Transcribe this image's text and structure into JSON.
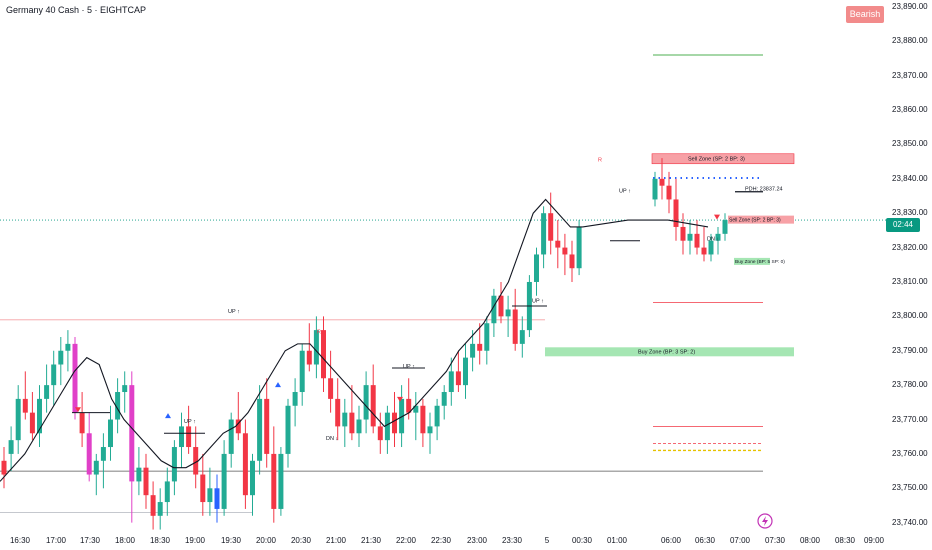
{
  "header": {
    "symbol_title": "Germany 40 Cash · 5 · EIGHTCAP",
    "trend_badge": "Bearish"
  },
  "colors": {
    "up": "#22ab94",
    "down": "#f23645",
    "pink_candle": "#e040c8",
    "blue_candle": "#2962ff",
    "trend_line": "#131722",
    "sell_zone": "#f7a1a6",
    "buy_zone": "#a5e6b3",
    "price_flag": "#089981",
    "bearish_badge": "#f28b8b"
  },
  "price_flag": {
    "value": "02:44"
  },
  "price_scale": {
    "ticks": [
      "23,890.00",
      "23,880.00",
      "23,870.00",
      "23,860.00",
      "23,850.00",
      "23,840.00",
      "23,830.00",
      "23,820.00",
      "23,810.00",
      "23,800.00",
      "23,790.00",
      "23,780.00",
      "23,770.00",
      "23,760.00",
      "23,750.00",
      "23,740.00"
    ]
  },
  "time_scale": {
    "ticks": [
      "16:30",
      "17:00",
      "17:30",
      "18:00",
      "18:30",
      "19:00",
      "19:30",
      "20:00",
      "20:30",
      "21:00",
      "21:30",
      "22:00",
      "22:30",
      "23:00",
      "23:30",
      "5",
      "00:30",
      "01:00",
      "06:00",
      "06:30",
      "07:00",
      "07:30",
      "08:00",
      "08:30",
      "09:00"
    ]
  },
  "annotations": {
    "sell_zone_top": "Sell Zone (SP: 2  BP: 3)",
    "sell_zone_mid": "Sell Zone (SP: 2  BP: 3)",
    "buy_zone_main": "Buy Zone (BP: 3  SP: 2)",
    "buy_zone_small": "Buy Zone (BP: 5  SP: 0)",
    "pdh": "PDH: 23837.24",
    "up1": "UP ↑",
    "up2": "UP ↑",
    "up3": "UP ↑",
    "up4": "UP ↑",
    "up5": "UP ↑",
    "dn1": "DN ↓",
    "dn2": "DN ↓",
    "marker_r1": "R",
    "marker_r2": "R"
  },
  "chart_data": {
    "type": "candlestick",
    "title": "Germany 40 Cash · 5 · EIGHTCAP",
    "ylim": [
      23737,
      23892
    ],
    "last_price": 23828,
    "levels": {
      "pdh": 23837.24,
      "upper_green": 23876,
      "upper_red": 23804,
      "lower_red": 23768,
      "lower_red_dashed": 23763,
      "lower_yellow_dashed": 23761,
      "lower_black": 23755,
      "left_red": 23799,
      "left_gray": 23743
    },
    "zones": [
      {
        "name": "Sell Zone (SP: 2  BP: 3)",
        "low": 23845,
        "high": 23847,
        "side": "sell"
      },
      {
        "name": "Sell Zone (SP: 2  BP: 3)",
        "low": 23827,
        "high": 23829,
        "side": "sell"
      },
      {
        "name": "Buy Zone (BP: 3  SP: 2)",
        "low": 23789,
        "high": 23791,
        "side": "buy"
      },
      {
        "name": "Buy Zone (BP: 5  SP: 0)",
        "low": 23815,
        "high": 23817,
        "side": "buy"
      }
    ],
    "candles": [
      [
        23758,
        23762,
        23750,
        23754,
        "n"
      ],
      [
        23760,
        23768,
        23755,
        23764,
        "n"
      ],
      [
        23764,
        23780,
        23760,
        23776,
        "n"
      ],
      [
        23776,
        23784,
        23770,
        23772,
        "n"
      ],
      [
        23772,
        23778,
        23764,
        23766,
        "n"
      ],
      [
        23766,
        23780,
        23762,
        23776,
        "n"
      ],
      [
        23776,
        23786,
        23772,
        23780,
        "n"
      ],
      [
        23780,
        23790,
        23774,
        23786,
        "n"
      ],
      [
        23786,
        23794,
        23780,
        23790,
        "n"
      ],
      [
        23790,
        23796,
        23784,
        23792,
        "n"
      ],
      [
        23792,
        23794,
        23770,
        23772,
        "p"
      ],
      [
        23772,
        23778,
        23762,
        23766,
        "n"
      ],
      [
        23766,
        23772,
        23752,
        23754,
        "p"
      ],
      [
        23754,
        23760,
        23748,
        23758,
        "n"
      ],
      [
        23758,
        23766,
        23750,
        23762,
        "n"
      ],
      [
        23762,
        23774,
        23758,
        23770,
        "n"
      ],
      [
        23770,
        23782,
        23766,
        23778,
        "n"
      ],
      [
        23778,
        23784,
        23772,
        23780,
        "n"
      ],
      [
        23780,
        23784,
        23740,
        23752,
        "p"
      ],
      [
        23752,
        23762,
        23748,
        23756,
        "n"
      ],
      [
        23756,
        23760,
        23744,
        23748,
        "n"
      ],
      [
        23748,
        23752,
        23738,
        23742,
        "n"
      ],
      [
        23742,
        23750,
        23738,
        23746,
        "n"
      ],
      [
        23746,
        23756,
        23742,
        23752,
        "n"
      ],
      [
        23752,
        23764,
        23748,
        23762,
        "n"
      ],
      [
        23762,
        23772,
        23756,
        23768,
        "n"
      ],
      [
        23768,
        23774,
        23760,
        23762,
        "n"
      ],
      [
        23762,
        23768,
        23750,
        23754,
        "n"
      ],
      [
        23754,
        23760,
        23742,
        23746,
        "n"
      ],
      [
        23746,
        23756,
        23742,
        23750,
        "n"
      ],
      [
        23750,
        23754,
        23740,
        23744,
        "b"
      ],
      [
        23744,
        23764,
        23742,
        23760,
        "n"
      ],
      [
        23760,
        23772,
        23756,
        23770,
        "n"
      ],
      [
        23770,
        23778,
        23764,
        23766,
        "n"
      ],
      [
        23766,
        23770,
        23744,
        23748,
        "n"
      ],
      [
        23748,
        23760,
        23742,
        23758,
        "n"
      ],
      [
        23758,
        23780,
        23754,
        23776,
        "n"
      ],
      [
        23776,
        23782,
        23756,
        23760,
        "n"
      ],
      [
        23760,
        23768,
        23740,
        23744,
        "n"
      ],
      [
        23744,
        23762,
        23742,
        23760,
        "n"
      ],
      [
        23760,
        23776,
        23756,
        23774,
        "n"
      ],
      [
        23774,
        23782,
        23768,
        23778,
        "n"
      ],
      [
        23778,
        23792,
        23774,
        23790,
        "n"
      ],
      [
        23790,
        23798,
        23784,
        23786,
        "n"
      ],
      [
        23786,
        23800,
        23782,
        23796,
        "n"
      ],
      [
        23796,
        23800,
        23778,
        23782,
        "n"
      ],
      [
        23782,
        23790,
        23772,
        23776,
        "n"
      ],
      [
        23776,
        23782,
        23764,
        23768,
        "n"
      ],
      [
        23768,
        23776,
        23762,
        23772,
        "n"
      ],
      [
        23772,
        23780,
        23764,
        23766,
        "n"
      ],
      [
        23766,
        23774,
        23762,
        23770,
        "n"
      ],
      [
        23770,
        23784,
        23766,
        23780,
        "n"
      ],
      [
        23780,
        23786,
        23766,
        23768,
        "n"
      ],
      [
        23768,
        23772,
        23760,
        23764,
        "n"
      ],
      [
        23764,
        23774,
        23760,
        23772,
        "n"
      ],
      [
        23772,
        23778,
        23762,
        23766,
        "n"
      ],
      [
        23766,
        23780,
        23762,
        23776,
        "n"
      ],
      [
        23776,
        23782,
        23770,
        23772,
        "n"
      ],
      [
        23772,
        23778,
        23764,
        23774,
        "n"
      ],
      [
        23774,
        23776,
        23762,
        23766,
        "n"
      ],
      [
        23766,
        23772,
        23760,
        23768,
        "n"
      ],
      [
        23768,
        23776,
        23764,
        23774,
        "n"
      ],
      [
        23774,
        23780,
        23770,
        23778,
        "n"
      ],
      [
        23778,
        23788,
        23774,
        23784,
        "n"
      ],
      [
        23784,
        23790,
        23778,
        23780,
        "n"
      ],
      [
        23780,
        23792,
        23776,
        23788,
        "n"
      ],
      [
        23788,
        23796,
        23784,
        23792,
        "n"
      ],
      [
        23792,
        23798,
        23786,
        23790,
        "n"
      ],
      [
        23790,
        23800,
        23786,
        23798,
        "n"
      ],
      [
        23798,
        23808,
        23794,
        23806,
        "n"
      ],
      [
        23806,
        23810,
        23798,
        23800,
        "n"
      ],
      [
        23800,
        23806,
        23794,
        23802,
        "n"
      ],
      [
        23802,
        23808,
        23790,
        23792,
        "n"
      ],
      [
        23792,
        23800,
        23788,
        23796,
        "n"
      ],
      [
        23796,
        23812,
        23794,
        23810,
        "n"
      ],
      [
        23810,
        23820,
        23806,
        23818,
        "n"
      ],
      [
        23818,
        23832,
        23814,
        23830,
        "n"
      ],
      [
        23830,
        23836,
        23818,
        23822,
        "n"
      ],
      [
        23822,
        23828,
        23814,
        23820,
        "n"
      ],
      [
        23820,
        23824,
        23812,
        23818,
        "n"
      ],
      [
        23818,
        23822,
        23810,
        23814,
        "n"
      ],
      [
        23814,
        23828,
        23812,
        23826,
        "n"
      ],
      [
        23834,
        23842,
        23832,
        23840,
        "n"
      ],
      [
        23840,
        23846,
        23834,
        23838,
        "n"
      ],
      [
        23838,
        23842,
        23830,
        23834,
        "n"
      ],
      [
        23834,
        23840,
        23822,
        23826,
        "n"
      ],
      [
        23826,
        23830,
        23818,
        23822,
        "n"
      ],
      [
        23822,
        23828,
        23818,
        23824,
        "n"
      ],
      [
        23824,
        23828,
        23818,
        23820,
        "n"
      ],
      [
        23820,
        23826,
        23816,
        23818,
        "n"
      ],
      [
        23818,
        23824,
        23816,
        23822,
        "n"
      ],
      [
        23822,
        23826,
        23818,
        23824,
        "n"
      ],
      [
        23824,
        23830,
        23822,
        23828,
        "n"
      ]
    ],
    "trend_line": [
      23752,
      23756,
      23760,
      23766,
      23772,
      23778,
      23784,
      23788,
      23786,
      23776,
      23770,
      23766,
      23762,
      23758,
      23756,
      23756,
      23758,
      23762,
      23766,
      23768,
      23772,
      23778,
      23784,
      23790,
      23792,
      23792,
      23788,
      23784,
      23780,
      23776,
      23772,
      23768,
      23770,
      23772,
      23776,
      23780,
      23784,
      23790,
      23794,
      23798,
      23804,
      23810,
      23820,
      23830,
      23834,
      23830,
      23826,
      23826,
      23828,
      23828,
      23826
    ]
  }
}
